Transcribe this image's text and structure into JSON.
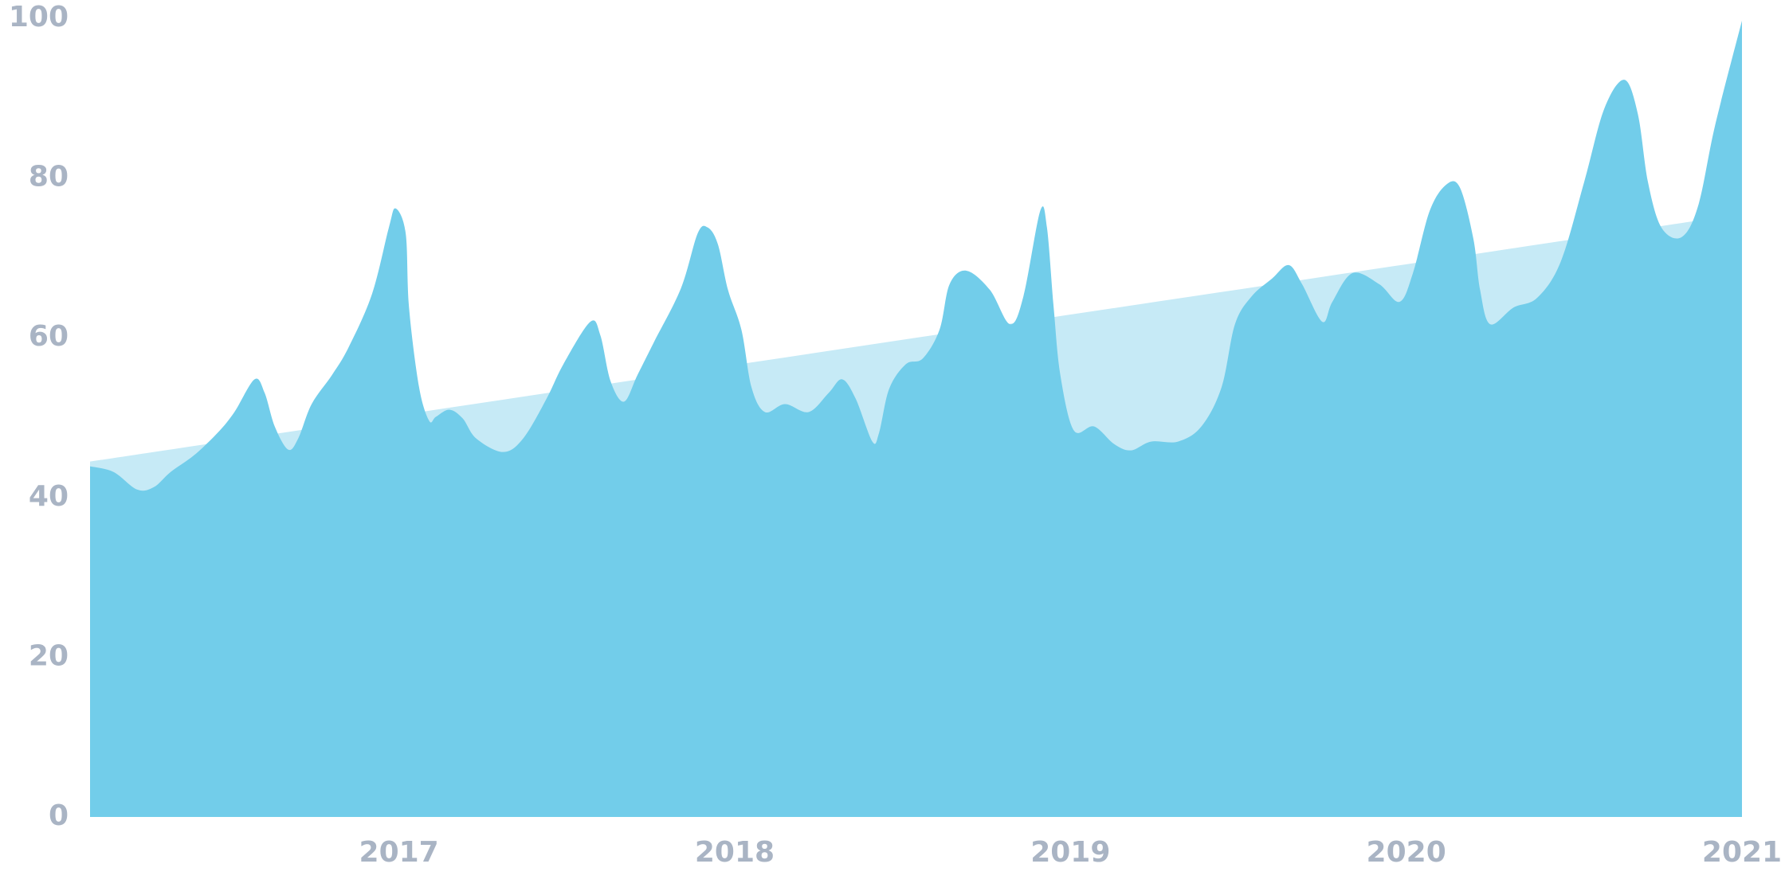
{
  "chart_data": {
    "type": "area",
    "xlim": [
      2016.08,
      2021.0
    ],
    "xticks": [
      2017,
      2018,
      2019,
      2020,
      2021
    ],
    "ylim": [
      0,
      100
    ],
    "yticks": [
      0,
      20,
      40,
      60,
      80,
      100
    ],
    "series": [
      {
        "color": "#c6eaf6",
        "x": [
          2016.08,
          2021.0
        ],
        "values": [
          44.5,
          75.5
        ]
      },
      {
        "color": "#72cdea",
        "x": [
          2016.08,
          2016.15,
          2016.22,
          2016.27,
          2016.32,
          2016.39,
          2016.46,
          2016.51,
          2016.57,
          2016.6,
          2016.63,
          2016.67,
          2016.7,
          2016.74,
          2016.8,
          2016.85,
          2016.92,
          2016.97,
          2016.99,
          2017.02,
          2017.03,
          2017.06,
          2017.09,
          2017.11,
          2017.15,
          2017.19,
          2017.23,
          2017.31,
          2017.37,
          2017.44,
          2017.49,
          2017.57,
          2017.6,
          2017.63,
          2017.67,
          2017.71,
          2017.76,
          2017.84,
          2017.89,
          2017.92,
          2017.95,
          2017.98,
          2018.02,
          2018.05,
          2018.09,
          2018.15,
          2018.22,
          2018.28,
          2018.32,
          2018.36,
          2018.41,
          2018.43,
          2018.46,
          2018.51,
          2018.56,
          2018.61,
          2018.64,
          2018.69,
          2018.76,
          2018.82,
          2018.86,
          2018.91,
          2018.93,
          2018.95,
          2018.97,
          2019.01,
          2019.07,
          2019.13,
          2019.18,
          2019.24,
          2019.32,
          2019.39,
          2019.45,
          2019.49,
          2019.54,
          2019.6,
          2019.65,
          2019.69,
          2019.75,
          2019.78,
          2019.84,
          2019.92,
          2019.98,
          2020.02,
          2020.07,
          2020.12,
          2020.16,
          2020.2,
          2020.22,
          2020.25,
          2020.32,
          2020.39,
          2020.46,
          2020.53,
          2020.59,
          2020.65,
          2020.69,
          2020.72,
          2020.76,
          2020.82,
          2020.87,
          2020.92,
          2021.0
        ],
        "values": [
          43.9,
          43.2,
          41,
          41.3,
          43.2,
          45.3,
          48.1,
          50.7,
          54.8,
          53.1,
          48.9,
          46,
          47.4,
          51.7,
          55.3,
          58.8,
          65.5,
          73.8,
          76.2,
          73.1,
          63.8,
          53.8,
          49.6,
          50.1,
          51,
          49.9,
          47.4,
          45.7,
          47.4,
          52.4,
          56.7,
          62,
          60.3,
          54.6,
          52,
          55.3,
          59.5,
          66.2,
          73.1,
          73.8,
          71.7,
          66,
          61,
          53.8,
          50.7,
          51.7,
          50.7,
          53.1,
          54.8,
          52.4,
          47,
          48.1,
          53.6,
          56.7,
          57.4,
          61,
          66.7,
          68.4,
          66,
          61.7,
          65.2,
          75.9,
          73.8,
          63.8,
          55.3,
          48.4,
          48.9,
          46.7,
          45.9,
          47,
          47,
          48.9,
          53.8,
          61.7,
          65.2,
          67.4,
          69.1,
          66.7,
          62,
          64.5,
          68.1,
          66.7,
          64.5,
          68.1,
          75.9,
          79.2,
          78.8,
          72.4,
          66,
          61.7,
          63.8,
          65,
          69.5,
          79.5,
          88.7,
          92.3,
          88,
          79.5,
          73.8,
          72.6,
          76.6,
          86.6,
          99.7
        ]
      }
    ]
  }
}
